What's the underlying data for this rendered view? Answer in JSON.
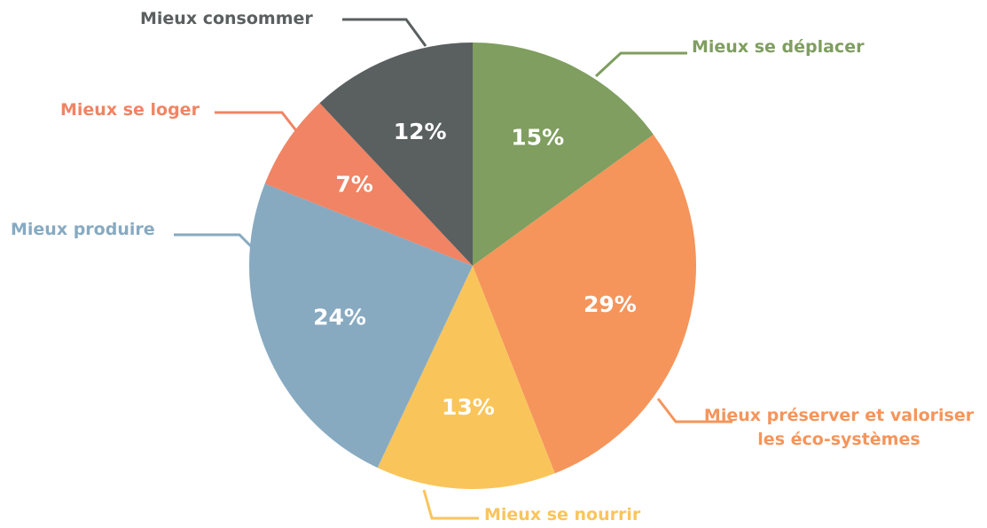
{
  "chart_data": {
    "type": "pie",
    "categories": [
      "Mieux se déplacer",
      "Mieux préserver et valoriser les éco-systèmes",
      "Mieux se nourrir",
      "Mieux produire",
      "Mieux se loger",
      "Mieux consommer"
    ],
    "values": [
      15,
      29,
      13,
      24,
      7,
      12
    ],
    "value_labels": [
      "15%",
      "29%",
      "13%",
      "24%",
      "7%",
      "12%"
    ],
    "colors": [
      "#7f9e5f",
      "#f5955b",
      "#f9c55b",
      "#87aac1",
      "#f08464",
      "#5a5f5f"
    ]
  }
}
